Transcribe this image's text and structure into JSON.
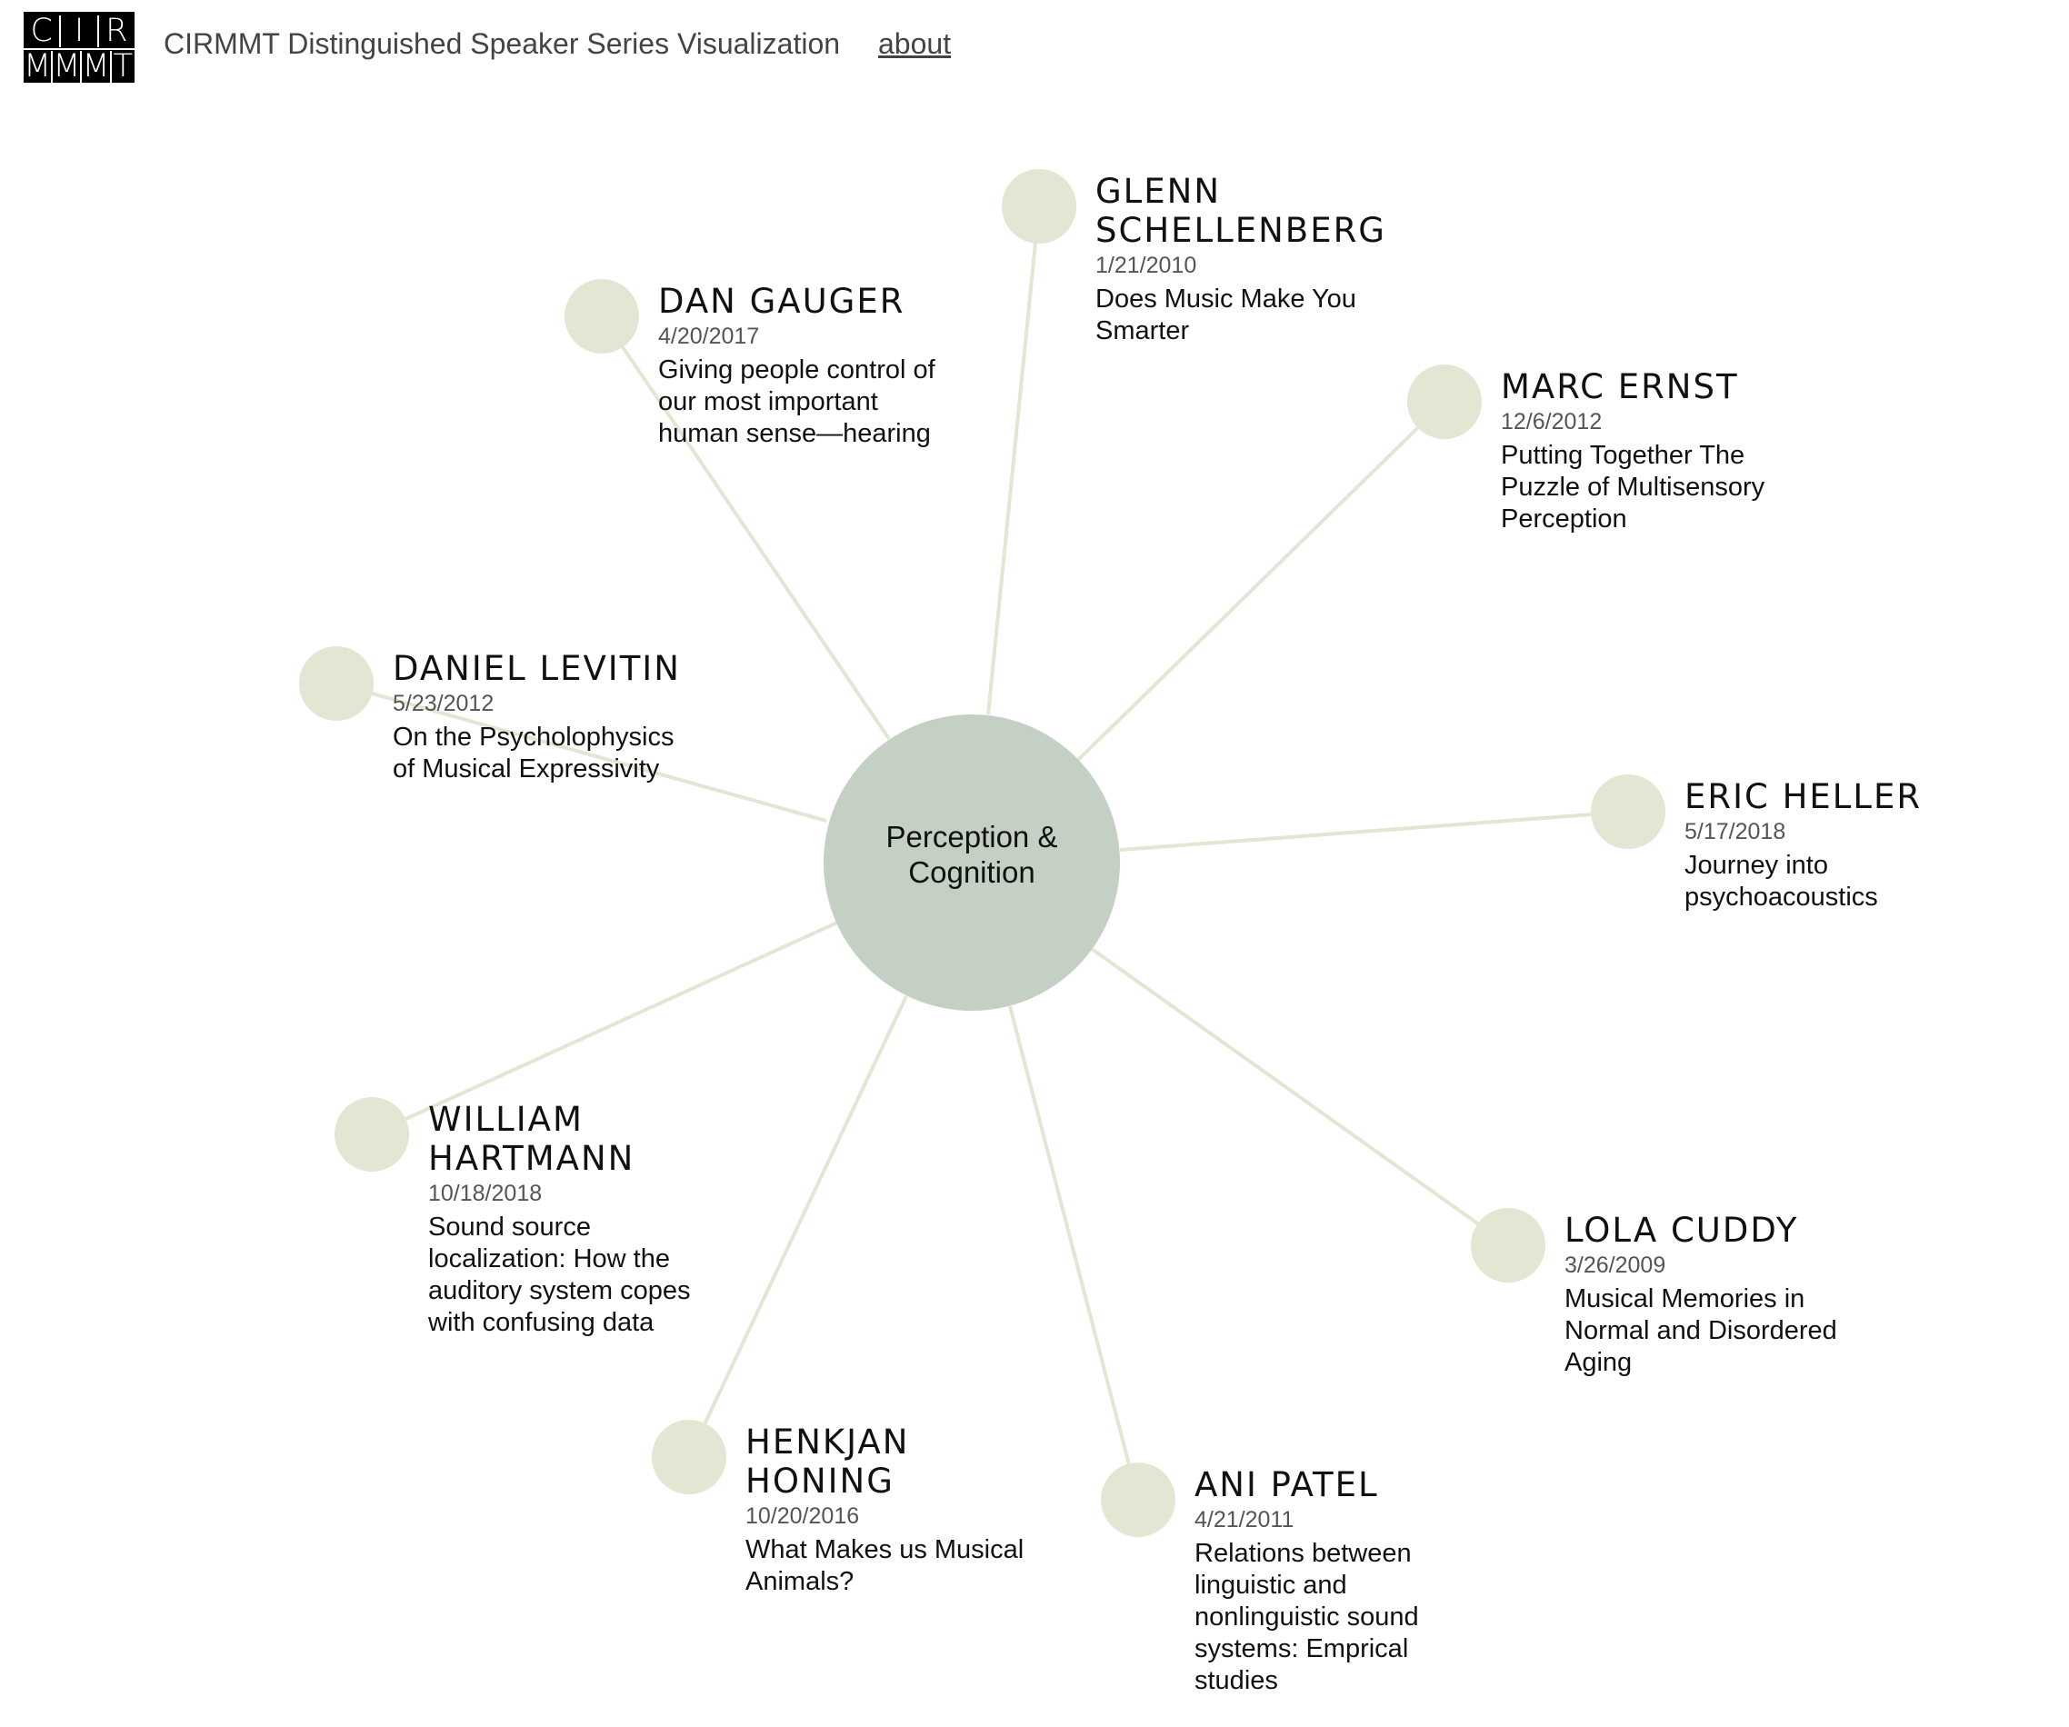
{
  "header": {
    "logo_top": [
      "C",
      "I",
      "R"
    ],
    "logo_bottom": [
      "M",
      "M",
      "M",
      "T"
    ],
    "title": "CIRMMT Distinguished Speaker Series Visualization",
    "about_label": "about"
  },
  "colors": {
    "hub_fill": "#c5d0c5",
    "node_fill": "#e2e6d2",
    "edge_stroke": "#e2e6d2",
    "text": "#111111",
    "date_text": "#555555",
    "header_text": "#444444"
  },
  "hub": {
    "label_lines": [
      "Perception &",
      "Cognition"
    ]
  },
  "speakers": [
    {
      "name_lines": [
        "GLENN",
        "SCHELLENBERG"
      ],
      "date": "1/21/2010",
      "title_lines": [
        "Does Music Make You",
        "Smarter"
      ]
    },
    {
      "name_lines": [
        "DAN GAUGER"
      ],
      "date": "4/20/2017",
      "title_lines": [
        "Giving people control of",
        "our most important",
        "human sense—hearing"
      ]
    },
    {
      "name_lines": [
        "MARC ERNST"
      ],
      "date": "12/6/2012",
      "title_lines": [
        "Putting Together The",
        "Puzzle of Multisensory",
        "Perception"
      ]
    },
    {
      "name_lines": [
        "DANIEL LEVITIN"
      ],
      "date": "5/23/2012",
      "title_lines": [
        "On the Psycholophysics",
        "of Musical Expressivity"
      ]
    },
    {
      "name_lines": [
        "ERIC HELLER"
      ],
      "date": "5/17/2018",
      "title_lines": [
        "Journey into",
        "psychoacoustics"
      ]
    },
    {
      "name_lines": [
        "WILLIAM",
        "HARTMANN"
      ],
      "date": "10/18/2018",
      "title_lines": [
        "Sound source",
        "localization: How the",
        "auditory system copes",
        "with confusing data"
      ]
    },
    {
      "name_lines": [
        "LOLA CUDDY"
      ],
      "date": "3/26/2009",
      "title_lines": [
        "Musical Memories in",
        "Normal and Disordered",
        "Aging"
      ]
    },
    {
      "name_lines": [
        "HENKJAN",
        "HONING"
      ],
      "date": "10/20/2016",
      "title_lines": [
        "What Makes us Musical",
        "Animals?"
      ]
    },
    {
      "name_lines": [
        "ANI PATEL"
      ],
      "date": "4/21/2011",
      "title_lines": [
        "Relations between",
        "linguistic and",
        "nonlinguistic sound",
        "systems: Emprical",
        "studies"
      ]
    }
  ]
}
